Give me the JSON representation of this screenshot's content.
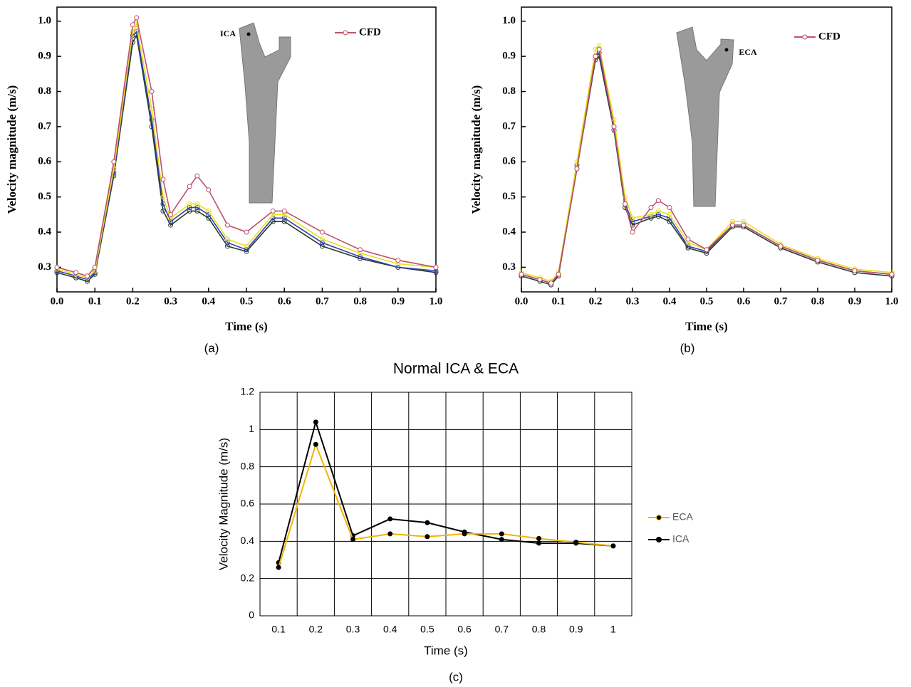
{
  "chart_data": [
    {
      "type": "line",
      "caption": "(a)",
      "annotation": "ICA",
      "xlabel": "Time (s)",
      "ylabel": "Velocity magnitude (m/s)",
      "legend": "top-right",
      "x": [
        0,
        0.05,
        0.08,
        0.1,
        0.15,
        0.2,
        0.21,
        0.25,
        0.28,
        0.3,
        0.35,
        0.37,
        0.4,
        0.45,
        0.5,
        0.57,
        0.6,
        0.7,
        0.8,
        0.9,
        1.0
      ],
      "xlim": [
        0,
        1
      ],
      "xticks": [
        {
          "value": 0,
          "label": "0.0"
        },
        0.1,
        0.2,
        0.3,
        0.4,
        0.5,
        0.6,
        0.7,
        0.8,
        0.9,
        {
          "value": 1,
          "label": "1.0"
        }
      ],
      "ylim": [
        0.23,
        1.04
      ],
      "yticks": [
        0.3,
        0.4,
        0.5,
        0.6,
        0.7,
        0.8,
        0.9,
        {
          "value": 1,
          "label": "1.0"
        }
      ],
      "series": [
        {
          "name": "CFD",
          "color": "#c0506a",
          "values": [
            0.3,
            0.285,
            0.275,
            0.3,
            0.6,
            0.99,
            1.01,
            0.8,
            0.55,
            0.45,
            0.53,
            0.56,
            0.52,
            0.42,
            0.4,
            0.46,
            0.46,
            0.4,
            0.35,
            0.32,
            0.3
          ]
        },
        {
          "color": "#e8e020",
          "values": [
            0.295,
            0.28,
            0.27,
            0.29,
            0.58,
            0.97,
            0.99,
            0.75,
            0.5,
            0.44,
            0.48,
            0.48,
            0.46,
            0.38,
            0.36,
            0.45,
            0.45,
            0.38,
            0.34,
            0.31,
            0.3
          ]
        },
        {
          "color": "#3040b0",
          "values": [
            0.29,
            0.275,
            0.265,
            0.285,
            0.57,
            0.96,
            0.97,
            0.72,
            0.48,
            0.43,
            0.47,
            0.47,
            0.45,
            0.37,
            0.35,
            0.44,
            0.44,
            0.37,
            0.33,
            0.3,
            0.29
          ]
        },
        {
          "color": "#2a3a2a",
          "values": [
            0.285,
            0.27,
            0.26,
            0.28,
            0.56,
            0.94,
            0.96,
            0.7,
            0.46,
            0.42,
            0.46,
            0.46,
            0.44,
            0.36,
            0.345,
            0.43,
            0.43,
            0.36,
            0.325,
            0.3,
            0.285
          ]
        }
      ]
    },
    {
      "type": "line",
      "caption": "(b)",
      "annotation": "ECA",
      "xlabel": "Time (s)",
      "ylabel": "Velocity magnitude (m/s)",
      "legend": "top-right",
      "x": [
        0,
        0.05,
        0.08,
        0.1,
        0.15,
        0.2,
        0.21,
        0.25,
        0.28,
        0.3,
        0.35,
        0.37,
        0.4,
        0.45,
        0.5,
        0.57,
        0.6,
        0.7,
        0.8,
        0.9,
        1.0
      ],
      "xlim": [
        0,
        1
      ],
      "xticks": [
        {
          "value": 0,
          "label": "0.0"
        },
        0.1,
        0.2,
        0.3,
        0.4,
        0.5,
        0.6,
        0.7,
        0.8,
        0.9,
        {
          "value": 1,
          "label": "1.0"
        }
      ],
      "ylim": [
        0.23,
        1.04
      ],
      "yticks": [
        0.3,
        0.4,
        0.5,
        0.6,
        0.7,
        0.8,
        0.9,
        {
          "value": 1,
          "label": "1.0"
        }
      ],
      "series": [
        {
          "name": "CFD",
          "color": "#c0506a",
          "values": [
            0.28,
            0.265,
            0.255,
            0.28,
            0.58,
            0.9,
            0.92,
            0.7,
            0.48,
            0.4,
            0.47,
            0.49,
            0.47,
            0.38,
            0.35,
            0.42,
            0.42,
            0.36,
            0.32,
            0.29,
            0.28
          ]
        },
        {
          "color": "#e8e020",
          "values": [
            0.285,
            0.27,
            0.26,
            0.285,
            0.6,
            0.92,
            0.93,
            0.72,
            0.5,
            0.44,
            0.45,
            0.46,
            0.45,
            0.37,
            0.35,
            0.43,
            0.43,
            0.365,
            0.325,
            0.295,
            0.285
          ]
        },
        {
          "color": "#3040b0",
          "values": [
            0.28,
            0.265,
            0.255,
            0.28,
            0.59,
            0.9,
            0.91,
            0.7,
            0.48,
            0.43,
            0.445,
            0.45,
            0.44,
            0.36,
            0.345,
            0.42,
            0.42,
            0.36,
            0.32,
            0.29,
            0.28
          ]
        },
        {
          "color": "#2a3a2a",
          "values": [
            0.275,
            0.26,
            0.25,
            0.275,
            0.58,
            0.89,
            0.9,
            0.69,
            0.47,
            0.42,
            0.44,
            0.445,
            0.43,
            0.355,
            0.34,
            0.415,
            0.415,
            0.355,
            0.315,
            0.285,
            0.275
          ]
        }
      ]
    },
    {
      "type": "line",
      "caption": "(c)",
      "title": "Normal ICA & ECA",
      "xlabel": "Time (s)",
      "ylabel": "Velocity Magnitude (m/s)",
      "legend": "right",
      "grid": true,
      "categories": [
        "0.1",
        "0.2",
        "0.3",
        "0.4",
        "0.5",
        "0.6",
        "0.7",
        "0.8",
        "0.9",
        "1"
      ],
      "ylim": [
        0,
        1.2
      ],
      "yticks": [
        0,
        0.2,
        0.4,
        0.6,
        0.8,
        1,
        1.2
      ],
      "series": [
        {
          "name": "ECA",
          "color": "#f2b400",
          "values": [
            0.26,
            0.92,
            0.41,
            0.44,
            0.425,
            0.44,
            0.44,
            0.415,
            0.395,
            0.375
          ]
        },
        {
          "name": "ICA",
          "color": "#000000",
          "values": [
            0.285,
            1.04,
            0.43,
            0.52,
            0.5,
            0.45,
            0.41,
            0.39,
            0.39,
            0.375
          ]
        }
      ]
    }
  ]
}
